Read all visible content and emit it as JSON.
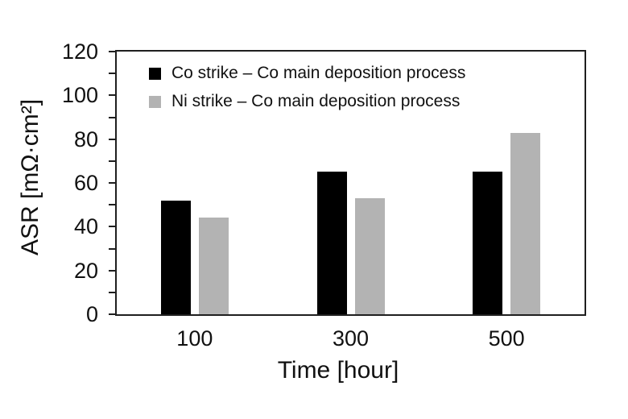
{
  "chart_data": {
    "type": "bar",
    "title": "",
    "categories": [
      "100",
      "300",
      "500"
    ],
    "series": [
      {
        "name": "Co strike – Co main deposition process",
        "color": "#000000",
        "values": [
          52,
          65,
          65
        ]
      },
      {
        "name": "Ni strike – Co main deposition process",
        "color": "#b3b3b3",
        "values": [
          44,
          53,
          83
        ]
      }
    ],
    "xlabel": "Time [hour]",
    "ylabel": "ASR [mΩ·cm²]",
    "ylim": [
      0,
      120
    ],
    "y_tick_labels": [
      "0",
      "20",
      "40",
      "60",
      "80",
      "100",
      "120"
    ],
    "y_major_tick": 20,
    "y_minor_tick": 10,
    "grid": false,
    "legend_position": "top-left-inside",
    "frame_color": "#1f1f1f",
    "text_color": "#111111",
    "background_color": "#ffffff"
  }
}
